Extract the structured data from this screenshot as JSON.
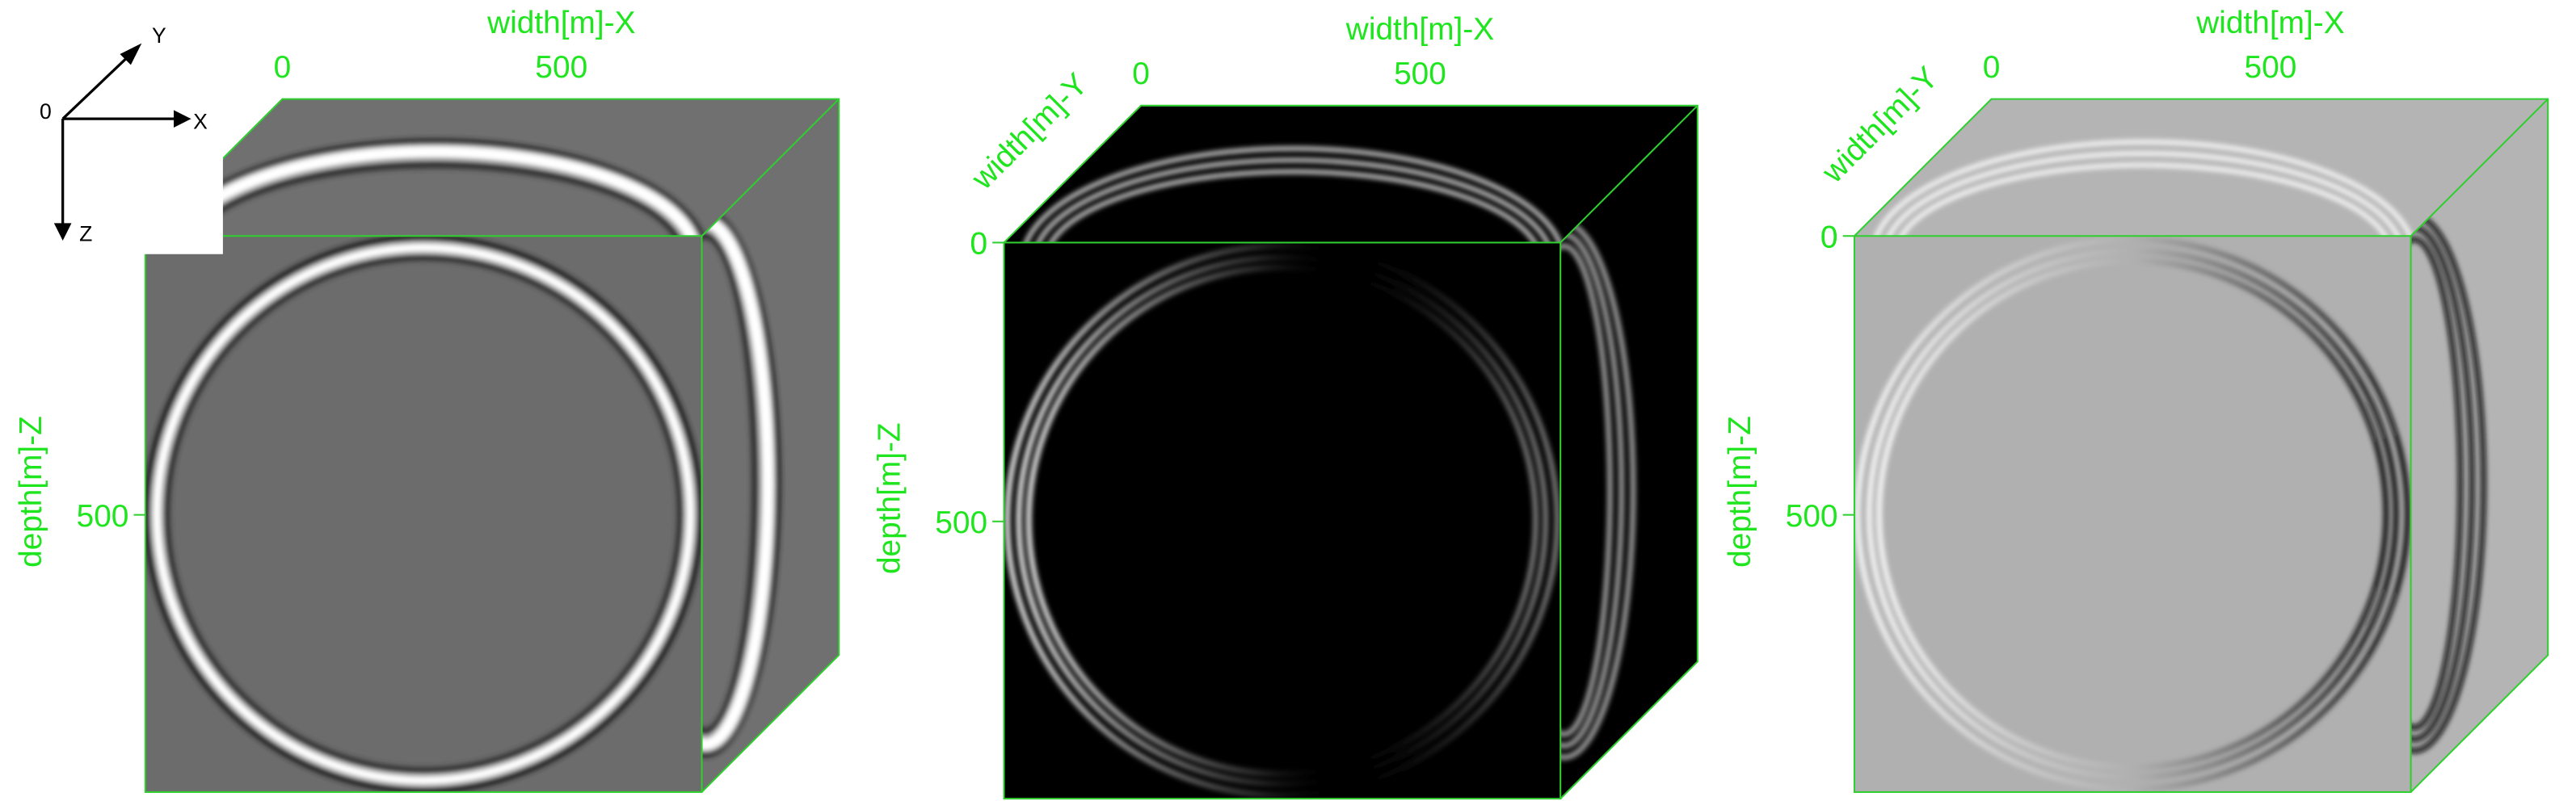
{
  "axis_icon": {
    "origin": "0",
    "x": "X",
    "y": "Y",
    "z": "Z"
  },
  "panels": [
    {
      "x_axis_label": "width[m]-X",
      "x_ticks": [
        0,
        500
      ],
      "z_axis_label": "depth[m]-Z",
      "z_ticks": [
        500
      ]
    },
    {
      "x_axis_label": "width[m]-X",
      "x_ticks": [
        0,
        500
      ],
      "y_axis_label": "width[m]-Y",
      "y_ticks": [
        0
      ],
      "z_axis_label": "depth[m]-Z",
      "z_ticks": [
        0,
        500
      ]
    },
    {
      "x_axis_label": "width[m]-X",
      "x_ticks": [
        0,
        500
      ],
      "y_axis_label": "width[m]-Y",
      "y_ticks": [
        0
      ],
      "z_axis_label": "depth[m]-Z",
      "z_ticks": [
        0,
        500
      ]
    }
  ]
}
